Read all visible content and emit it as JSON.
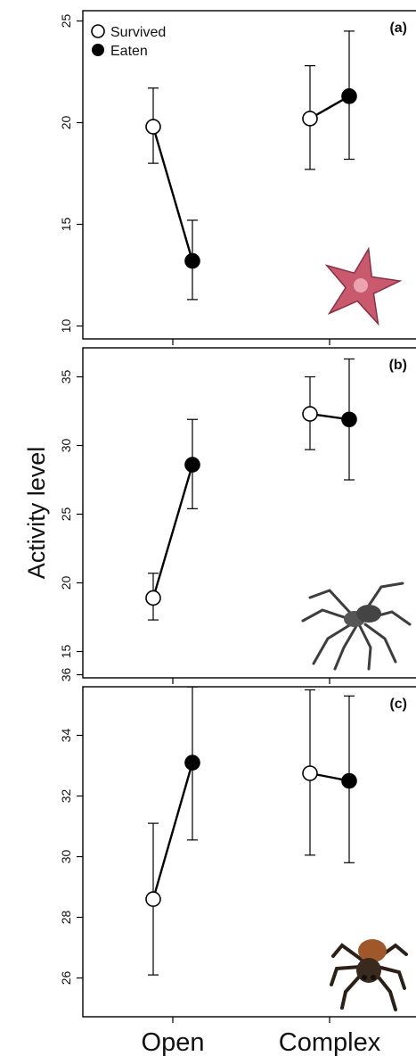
{
  "chart_data": [
    {
      "type": "line",
      "panel_label": "(a)",
      "categories": [
        "Open",
        "Complex"
      ],
      "ylim": [
        9.5,
        25.2
      ],
      "yticks": [
        10,
        15,
        20,
        25
      ],
      "series": [
        {
          "name": "Survived",
          "marker": "open-circle",
          "values": [
            19.8,
            20.2
          ],
          "err_low": [
            18.0,
            17.7
          ],
          "err_high": [
            21.7,
            22.8
          ]
        },
        {
          "name": "Eaten",
          "marker": "filled-circle",
          "values": [
            13.2,
            21.3
          ],
          "err_low": [
            11.3,
            18.2
          ],
          "err_high": [
            15.2,
            24.5
          ]
        }
      ],
      "inset_icon": "sea-star-image"
    },
    {
      "type": "line",
      "panel_label": "(b)",
      "categories": [
        "Open",
        "Complex"
      ],
      "ylim": [
        13.5,
        36.8
      ],
      "yticks": [
        15,
        20,
        25,
        30,
        35
      ],
      "series": [
        {
          "name": "Survived",
          "marker": "open-circle",
          "values": [
            18.9,
            32.3
          ],
          "err_low": [
            17.3,
            29.7
          ],
          "err_high": [
            20.7,
            35.0
          ]
        },
        {
          "name": "Eaten",
          "marker": "filled-circle",
          "values": [
            28.6,
            31.9
          ],
          "err_low": [
            25.4,
            27.5
          ],
          "err_high": [
            31.9,
            36.3
          ]
        }
      ],
      "inset_icon": "wolf-spider-image"
    },
    {
      "type": "line",
      "panel_label": "(c)",
      "categories": [
        "Open",
        "Complex"
      ],
      "ylim": [
        25.0,
        36.4
      ],
      "yticks": [
        26,
        28,
        30,
        32,
        34,
        36
      ],
      "series": [
        {
          "name": "Survived",
          "marker": "open-circle",
          "values": [
            28.6,
            32.75
          ],
          "err_low": [
            26.1,
            30.05
          ],
          "err_high": [
            31.1,
            35.5
          ]
        },
        {
          "name": "Eaten",
          "marker": "filled-circle",
          "values": [
            33.1,
            32.5
          ],
          "err_low": [
            30.55,
            29.8
          ],
          "err_high": [
            35.6,
            35.3
          ]
        }
      ],
      "inset_icon": "jumping-spider-image"
    }
  ],
  "legend": {
    "survived": "Survived",
    "eaten": "Eaten"
  },
  "ylabel": "Activity level",
  "xticklabels": [
    "Open",
    "Complex"
  ]
}
